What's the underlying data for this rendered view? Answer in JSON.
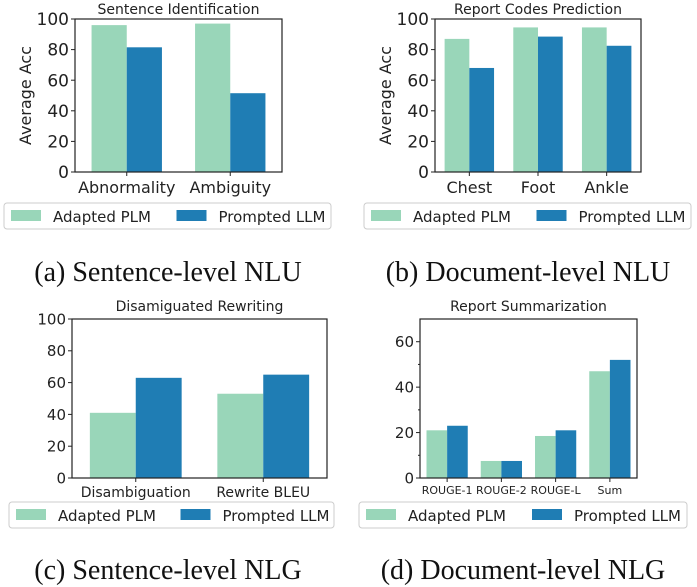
{
  "colors": {
    "adapted": "#99d6b9",
    "prompted": "#1f7db4"
  },
  "chart_data": [
    {
      "type": "bar",
      "title": "Sentence Identification",
      "caption": "(a) Sentence-level NLU",
      "ylabel": "Average Acc",
      "xlabel": "",
      "categories": [
        "Abnormality",
        "Ambiguity"
      ],
      "series": [
        {
          "name": "Adapted PLM",
          "values": [
            96,
            97
          ]
        },
        {
          "name": "Prompted LLM",
          "values": [
            81.5,
            51.5
          ]
        }
      ],
      "ylim": [
        0,
        100
      ],
      "yticks": [
        "0",
        "20",
        "40",
        "60",
        "80",
        "100"
      ],
      "legend": "bottom"
    },
    {
      "type": "bar",
      "title": "Report Codes Prediction",
      "caption": "(b) Document-level NLU",
      "ylabel": "Average Acc",
      "xlabel": "",
      "categories": [
        "Chest",
        "Foot",
        "Ankle"
      ],
      "series": [
        {
          "name": "Adapted PLM",
          "values": [
            87,
            94.5,
            94.5
          ]
        },
        {
          "name": "Prompted LLM",
          "values": [
            68,
            88.5,
            82.5
          ]
        }
      ],
      "ylim": [
        0,
        100
      ],
      "yticks": [
        "0",
        "20",
        "40",
        "60",
        "80",
        "100"
      ],
      "legend": "bottom"
    },
    {
      "type": "bar",
      "title": "Disamiguated Rewriting",
      "caption": "(c) Sentence-level NLG",
      "ylabel": "",
      "xlabel": "",
      "categories": [
        "Disambiguation",
        "Rewrite BLEU"
      ],
      "series": [
        {
          "name": "Adapted PLM",
          "values": [
            41,
            53
          ]
        },
        {
          "name": "Prompted LLM",
          "values": [
            63,
            65
          ]
        }
      ],
      "ylim": [
        0,
        100
      ],
      "yticks": [
        "0",
        "20",
        "40",
        "60",
        "80",
        "100"
      ],
      "legend": "bottom"
    },
    {
      "type": "bar",
      "title": "Report Summarization",
      "caption": "(d) Document-level NLG",
      "ylabel": "",
      "xlabel": "",
      "categories": [
        "ROUGE-1",
        "ROUGE-2",
        "ROUGE-L",
        "Sum"
      ],
      "series": [
        {
          "name": "Adapted PLM",
          "values": [
            21,
            7.5,
            18.5,
            47
          ]
        },
        {
          "name": "Prompted LLM",
          "values": [
            23,
            7.5,
            21,
            52
          ]
        }
      ],
      "ylim": [
        0,
        70
      ],
      "yticks": [
        "0",
        "20",
        "40",
        "60"
      ],
      "legend": "bottom"
    }
  ]
}
